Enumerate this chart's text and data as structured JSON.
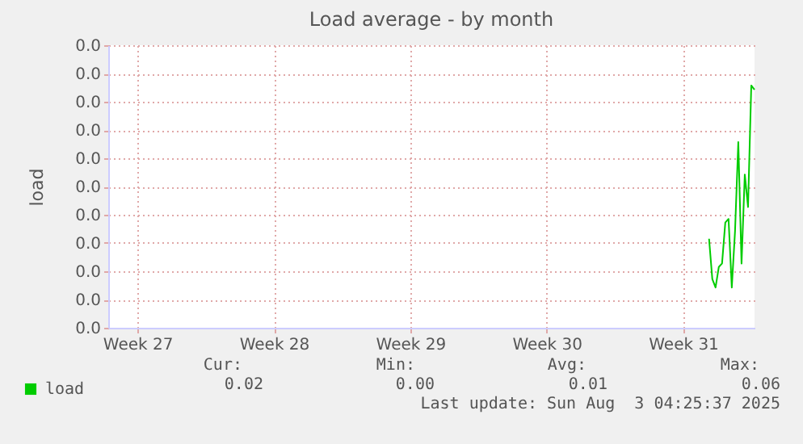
{
  "chart_data": {
    "type": "line",
    "title": "Load average - by month",
    "ylabel": "load",
    "categories": [
      null,
      null,
      null,
      null,
      null,
      null,
      null,
      null,
      null,
      "Week 27",
      null,
      null,
      null,
      null,
      null,
      null,
      null,
      null,
      null,
      null,
      null,
      null,
      null,
      null,
      null,
      null,
      null,
      null,
      null,
      null,
      null,
      null,
      null,
      null,
      null,
      null,
      null,
      null,
      null,
      null,
      null,
      null,
      null,
      null,
      null,
      null,
      null,
      null,
      null,
      null,
      null,
      "Week 28",
      null,
      null,
      null,
      null,
      null,
      null,
      null,
      null,
      null,
      null,
      null,
      null,
      null,
      null,
      null,
      null,
      null,
      null,
      null,
      null,
      null,
      null,
      null,
      null,
      null,
      null,
      null,
      null,
      null,
      null,
      null,
      null,
      null,
      null,
      null,
      null,
      null,
      null,
      null,
      null,
      null,
      "Week 29",
      null,
      null,
      null,
      null,
      null,
      null,
      null,
      null,
      null,
      null,
      null,
      null,
      null,
      null,
      null,
      null,
      null,
      null,
      null,
      null,
      null,
      null,
      null,
      null,
      null,
      null,
      null,
      null,
      null,
      null,
      null,
      null,
      null,
      null,
      null,
      null,
      null,
      null,
      null,
      null,
      null,
      "Week 30",
      null,
      null,
      null,
      null,
      null,
      null,
      null,
      null,
      null,
      null,
      null,
      null,
      null,
      null,
      null,
      null,
      null,
      null,
      null,
      null,
      null,
      null,
      null,
      null,
      null,
      null,
      null,
      null,
      null,
      null,
      null,
      null,
      null,
      null,
      null,
      null,
      null,
      null,
      null,
      null,
      null,
      "Week 31",
      null,
      null,
      null,
      null,
      null,
      null,
      null,
      null,
      null,
      null,
      null,
      null,
      null,
      null,
      null,
      null,
      null,
      null,
      null,
      null,
      null,
      null
    ],
    "series": [
      {
        "name": "load",
        "color": "#00cc00",
        "values": [
          null,
          null,
          null,
          null,
          null,
          null,
          null,
          null,
          null,
          null,
          null,
          null,
          null,
          null,
          null,
          null,
          null,
          null,
          null,
          null,
          null,
          null,
          null,
          null,
          null,
          null,
          null,
          null,
          null,
          null,
          null,
          null,
          null,
          null,
          null,
          null,
          null,
          null,
          null,
          null,
          null,
          null,
          null,
          null,
          null,
          null,
          null,
          null,
          null,
          null,
          null,
          null,
          null,
          null,
          null,
          null,
          null,
          null,
          null,
          null,
          null,
          null,
          null,
          null,
          null,
          null,
          null,
          null,
          null,
          null,
          null,
          null,
          null,
          null,
          null,
          null,
          null,
          null,
          null,
          null,
          null,
          null,
          null,
          null,
          null,
          null,
          null,
          null,
          null,
          null,
          null,
          null,
          null,
          null,
          null,
          null,
          null,
          null,
          null,
          null,
          null,
          null,
          null,
          null,
          null,
          null,
          null,
          null,
          null,
          null,
          null,
          null,
          null,
          null,
          null,
          null,
          null,
          null,
          null,
          null,
          null,
          null,
          null,
          null,
          null,
          null,
          null,
          null,
          null,
          null,
          null,
          null,
          null,
          null,
          null,
          null,
          null,
          null,
          null,
          null,
          null,
          null,
          null,
          null,
          null,
          null,
          null,
          null,
          null,
          null,
          null,
          null,
          null,
          null,
          null,
          null,
          null,
          null,
          null,
          null,
          null,
          null,
          null,
          null,
          null,
          null,
          null,
          null,
          null,
          null,
          null,
          null,
          null,
          null,
          null,
          null,
          null,
          null,
          null,
          null,
          null,
          null,
          null,
          null,
          null,
          0.0126,
          0.0069,
          0.0057,
          0.0086,
          0.0091,
          0.0149,
          0.0154,
          0.0057,
          0.0137,
          0.0263,
          0.0091,
          0.0217,
          0.0171,
          0.0343,
          0.0337
        ]
      }
    ],
    "ylim": [
      0,
      0.04
    ],
    "yticks": [
      {
        "value": 0,
        "label": "0.0"
      },
      {
        "value": 0.004,
        "label": "0.0"
      },
      {
        "value": 0.008,
        "label": "0.0"
      },
      {
        "value": 0.012,
        "label": "0.0"
      },
      {
        "value": 0.016,
        "label": "0.0"
      },
      {
        "value": 0.02,
        "label": "0.0"
      },
      {
        "value": 0.024,
        "label": "0.0"
      },
      {
        "value": 0.028,
        "label": "0.0"
      },
      {
        "value": 0.032,
        "label": "0.0"
      },
      {
        "value": 0.036,
        "label": "0.0"
      },
      {
        "value": 0.04,
        "label": "0.0"
      }
    ],
    "grid": true,
    "legend": "bottom left",
    "annotations": [
      "Cur:",
      "Min:",
      "Avg:",
      "Max:",
      "0.02",
      "0.00",
      "0.01",
      "0.06",
      "Last update: Sun Aug  3 04:25:37 2025"
    ]
  }
}
